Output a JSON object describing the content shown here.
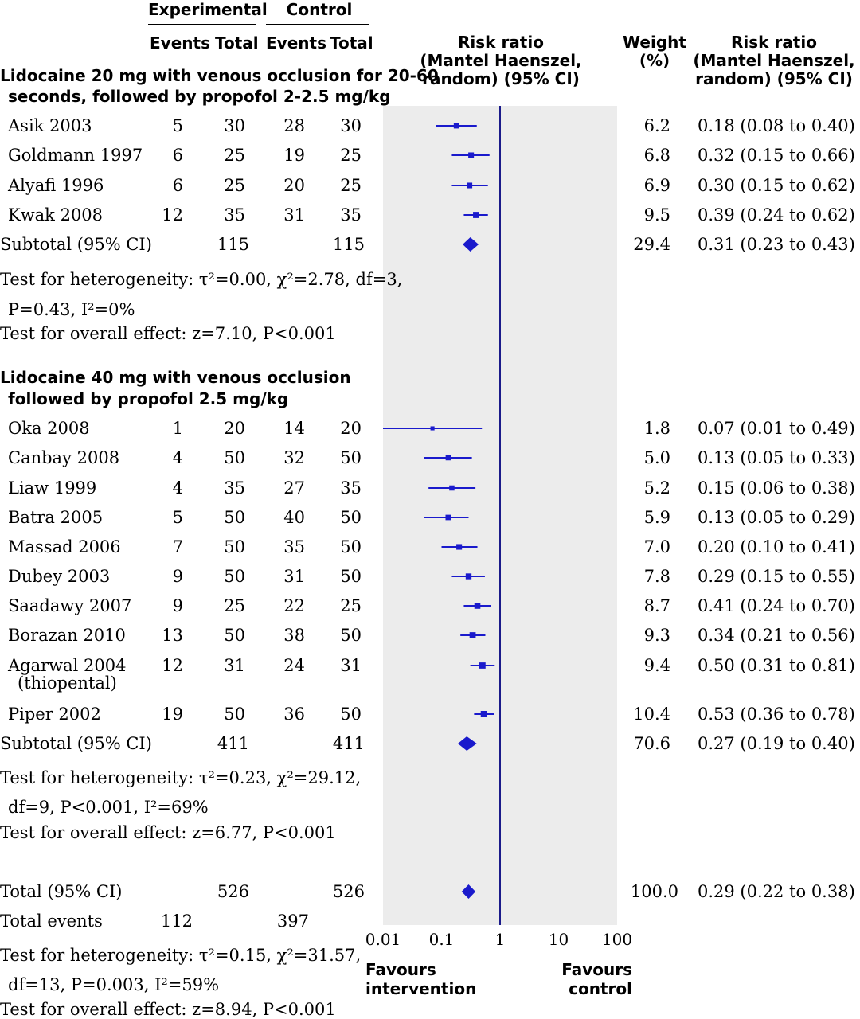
{
  "header": {
    "experimental": "Experimental",
    "control": "Control",
    "events": "Events",
    "total": "Total",
    "risk_ratio_plot": [
      "Risk ratio",
      "(Mantel Haenszel,",
      "random) (95% CI)"
    ],
    "weight": [
      "Weight",
      "(%)"
    ],
    "risk_ratio_col": [
      "Risk ratio",
      "(Mantel Haenszel,",
      "random) (95% CI)"
    ]
  },
  "groups": [
    {
      "title": [
        "Lidocaine 20 mg with venous occlusion for 20-60",
        "seconds, followed by propofol 2-2.5 mg/kg"
      ],
      "subtotal": {
        "label": "Subtotal (95% CI)",
        "exp_total": "115",
        "ctl_total": "115",
        "weight": "29.4",
        "ci": "0.31 (0.23 to 0.43)"
      },
      "heterogeneity": [
        "Test for heterogeneity: τ²=0.00, χ²=2.78, df=3,",
        "P=0.43, I²=0%"
      ],
      "overall": "Test for overall effect: z=7.10, P<0.001"
    },
    {
      "title": [
        "Lidocaine 40 mg with venous occlusion",
        "followed by propofol 2.5 mg/kg"
      ],
      "subtotal": {
        "label": "Subtotal (95% CI)",
        "exp_total": "411",
        "ctl_total": "411",
        "weight": "70.6",
        "ci": "0.27 (0.19 to 0.40)"
      },
      "heterogeneity": [
        "Test for heterogeneity: τ²=0.23, χ²=29.12,",
        "df=9, P<0.001, I²=69%"
      ],
      "overall": "Test for overall effect: z=6.77, P<0.001"
    }
  ],
  "total": {
    "label": "Total (95% CI)",
    "exp_total": "526",
    "ctl_total": "526",
    "weight": "100.0",
    "ci": "0.29 (0.22 to 0.38)",
    "events_label": "Total events",
    "exp_events": "112",
    "ctl_events": "397",
    "heterogeneity": [
      "Test for heterogeneity: τ²=0.15, χ²=31.57,",
      "df=13, P=0.003, I²=59%"
    ],
    "overall": "Test for overall effect: z=8.94, P<0.001"
  },
  "favours_left": [
    "Favours",
    "intervention"
  ],
  "favours_right": [
    "Favours",
    "control"
  ],
  "colors": {
    "marker": "#1a1acc",
    "ref_line": "#1a1a8a",
    "panel": "#ececec"
  },
  "chart_data": {
    "type": "forest",
    "x_scale": "log",
    "xlim": [
      0.01,
      100
    ],
    "ticks": [
      "0.01",
      "0.1",
      "1",
      "10",
      "100"
    ],
    "tick_values": [
      0.01,
      0.1,
      1,
      10,
      100
    ],
    "reference": 1,
    "studies": [
      {
        "group": 0,
        "name": "Asik 2003",
        "exp_events": "5",
        "exp_total": "30",
        "ctl_events": "28",
        "ctl_total": "30",
        "weight": "6.2",
        "ci": "0.18 (0.08 to 0.40)",
        "rr": 0.18,
        "lo": 0.08,
        "hi": 0.4
      },
      {
        "group": 0,
        "name": "Goldmann 1997",
        "exp_events": "6",
        "exp_total": "25",
        "ctl_events": "19",
        "ctl_total": "25",
        "weight": "6.8",
        "ci": "0.32 (0.15 to 0.66)",
        "rr": 0.32,
        "lo": 0.15,
        "hi": 0.66
      },
      {
        "group": 0,
        "name": "Alyafi 1996",
        "exp_events": "6",
        "exp_total": "25",
        "ctl_events": "20",
        "ctl_total": "25",
        "weight": "6.9",
        "ci": "0.30 (0.15 to 0.62)",
        "rr": 0.3,
        "lo": 0.15,
        "hi": 0.62
      },
      {
        "group": 0,
        "name": "Kwak 2008",
        "exp_events": "12",
        "exp_total": "35",
        "ctl_events": "31",
        "ctl_total": "35",
        "weight": "9.5",
        "ci": "0.39 (0.24 to 0.62)",
        "rr": 0.39,
        "lo": 0.24,
        "hi": 0.62
      },
      {
        "group": 1,
        "name": "Oka 2008",
        "exp_events": "1",
        "exp_total": "20",
        "ctl_events": "14",
        "ctl_total": "20",
        "weight": "1.8",
        "ci": "0.07 (0.01 to 0.49)",
        "rr": 0.07,
        "lo": 0.01,
        "hi": 0.49
      },
      {
        "group": 1,
        "name": "Canbay 2008",
        "exp_events": "4",
        "exp_total": "50",
        "ctl_events": "32",
        "ctl_total": "50",
        "weight": "5.0",
        "ci": "0.13 (0.05 to 0.33)",
        "rr": 0.13,
        "lo": 0.05,
        "hi": 0.33
      },
      {
        "group": 1,
        "name": "Liaw 1999",
        "exp_events": "4",
        "exp_total": "35",
        "ctl_events": "27",
        "ctl_total": "35",
        "weight": "5.2",
        "ci": "0.15 (0.06 to 0.38)",
        "rr": 0.15,
        "lo": 0.06,
        "hi": 0.38
      },
      {
        "group": 1,
        "name": "Batra 2005",
        "exp_events": "5",
        "exp_total": "50",
        "ctl_events": "40",
        "ctl_total": "50",
        "weight": "5.9",
        "ci": "0.13 (0.05 to 0.29)",
        "rr": 0.13,
        "lo": 0.05,
        "hi": 0.29
      },
      {
        "group": 1,
        "name": "Massad 2006",
        "exp_events": "7",
        "exp_total": "50",
        "ctl_events": "35",
        "ctl_total": "50",
        "weight": "7.0",
        "ci": "0.20 (0.10 to 0.41)",
        "rr": 0.2,
        "lo": 0.1,
        "hi": 0.41
      },
      {
        "group": 1,
        "name": "Dubey 2003",
        "exp_events": "9",
        "exp_total": "50",
        "ctl_events": "31",
        "ctl_total": "50",
        "weight": "7.8",
        "ci": "0.29 (0.15 to 0.55)",
        "rr": 0.29,
        "lo": 0.15,
        "hi": 0.55
      },
      {
        "group": 1,
        "name": "Saadawy 2007",
        "exp_events": "9",
        "exp_total": "25",
        "ctl_events": "22",
        "ctl_total": "25",
        "weight": "8.7",
        "ci": "0.41 (0.24 to 0.70)",
        "rr": 0.41,
        "lo": 0.24,
        "hi": 0.7
      },
      {
        "group": 1,
        "name": "Borazan 2010",
        "exp_events": "13",
        "exp_total": "50",
        "ctl_events": "38",
        "ctl_total": "50",
        "weight": "9.3",
        "ci": "0.34 (0.21 to 0.56)",
        "rr": 0.34,
        "lo": 0.21,
        "hi": 0.56
      },
      {
        "group": 1,
        "name": "Agarwal 2004",
        "name2": "(thiopental)",
        "exp_events": "12",
        "exp_total": "31",
        "ctl_events": "24",
        "ctl_total": "31",
        "weight": "9.4",
        "ci": "0.50 (0.31 to 0.81)",
        "rr": 0.5,
        "lo": 0.31,
        "hi": 0.81
      },
      {
        "group": 1,
        "name": "Piper 2002",
        "exp_events": "19",
        "exp_total": "50",
        "ctl_events": "36",
        "ctl_total": "50",
        "weight": "10.4",
        "ci": "0.53 (0.36 to 0.78)",
        "rr": 0.53,
        "lo": 0.36,
        "hi": 0.78
      }
    ],
    "pooled": [
      {
        "name": "Subtotal 1",
        "rr": 0.31,
        "lo": 0.23,
        "hi": 0.43
      },
      {
        "name": "Subtotal 2",
        "rr": 0.27,
        "lo": 0.19,
        "hi": 0.4
      },
      {
        "name": "Total",
        "rr": 0.29,
        "lo": 0.22,
        "hi": 0.38
      }
    ]
  }
}
